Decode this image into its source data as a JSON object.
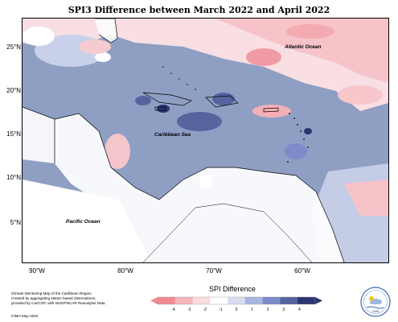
{
  "title": "SPI3 Difference between March 2022 and April 2022",
  "lat_labels": [
    "25°N",
    "20°N",
    "15°N",
    "10°N",
    "5°N"
  ],
  "lon_labels": [
    "90°W",
    "80°W",
    "70°W",
    "60°W"
  ],
  "ocean_labels": {
    "atlantic": "Atlantic Ocean",
    "caribbean": "Caribbean Sea",
    "pacific": "Pacific Ocean"
  },
  "legend": {
    "title": "SPI Difference",
    "ticks": [
      "-4",
      "-3",
      "-2",
      "-1",
      "0",
      "1",
      "2",
      "3",
      "4"
    ],
    "colors": [
      "#f08a92",
      "#f7b4b9",
      "#fbdde0",
      "#ffffff",
      "#d8def0",
      "#a9b4df",
      "#7d8bc8",
      "#55639f",
      "#2c3570"
    ]
  },
  "credits": {
    "line1": "Climate Monitoring Map of the Caribbean Region.",
    "line2": "Created by aggregating station based observations,",
    "line3": "provided by CariCOF, with NCEP/NCAR Reanalysis Data.",
    "line4": "CIMH May-2022"
  },
  "logo_text": "CIMH"
}
